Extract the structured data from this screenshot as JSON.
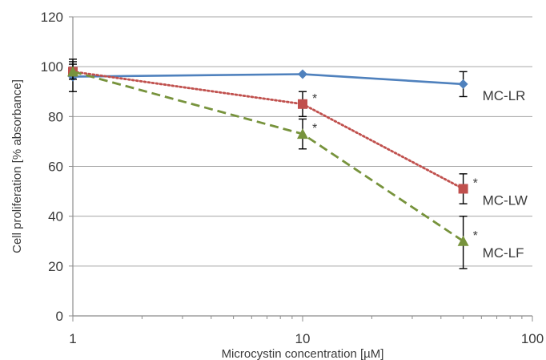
{
  "chart_data": {
    "type": "line",
    "title": "",
    "xlabel": "Microcystin concentration [µM]",
    "ylabel": "Cell proliferation [% absorbance]",
    "x_scale": "log",
    "xlim": [
      1,
      100
    ],
    "ylim": [
      0,
      120
    ],
    "x_ticks": [
      1,
      10,
      100
    ],
    "x_tick_labels": [
      "1",
      "10",
      "100"
    ],
    "y_ticks": [
      0,
      20,
      40,
      60,
      80,
      100,
      120
    ],
    "y_tick_labels": [
      "0",
      "20",
      "40",
      "60",
      "80",
      "100",
      "120"
    ],
    "grid": "horizontal",
    "legend": "none",
    "series": [
      {
        "name": "MC-LR",
        "color": "#4f81bd",
        "line_style": "solid",
        "marker": "diamond",
        "x": [
          1,
          10,
          50
        ],
        "y": [
          96,
          97,
          93
        ],
        "error_low": [
          90,
          null,
          88
        ],
        "error_high": [
          102,
          null,
          98
        ],
        "significant": [
          false,
          false,
          false
        ]
      },
      {
        "name": "MC-LW",
        "color": "#c0504d",
        "line_style": "dotted",
        "marker": "square",
        "x": [
          1,
          10,
          50
        ],
        "y": [
          98,
          85,
          51
        ],
        "error_low": [
          95,
          80,
          45
        ],
        "error_high": [
          103,
          90,
          57
        ],
        "significant": [
          false,
          true,
          true
        ]
      },
      {
        "name": "MC-LF",
        "color": "#77933c",
        "line_style": "dashed",
        "marker": "triangle",
        "x": [
          1,
          10,
          50
        ],
        "y": [
          98,
          73,
          30
        ],
        "error_low": [
          95,
          67,
          19
        ],
        "error_high": [
          101,
          79,
          40
        ],
        "significant": [
          false,
          true,
          true
        ]
      }
    ],
    "significance_marker": "*"
  }
}
